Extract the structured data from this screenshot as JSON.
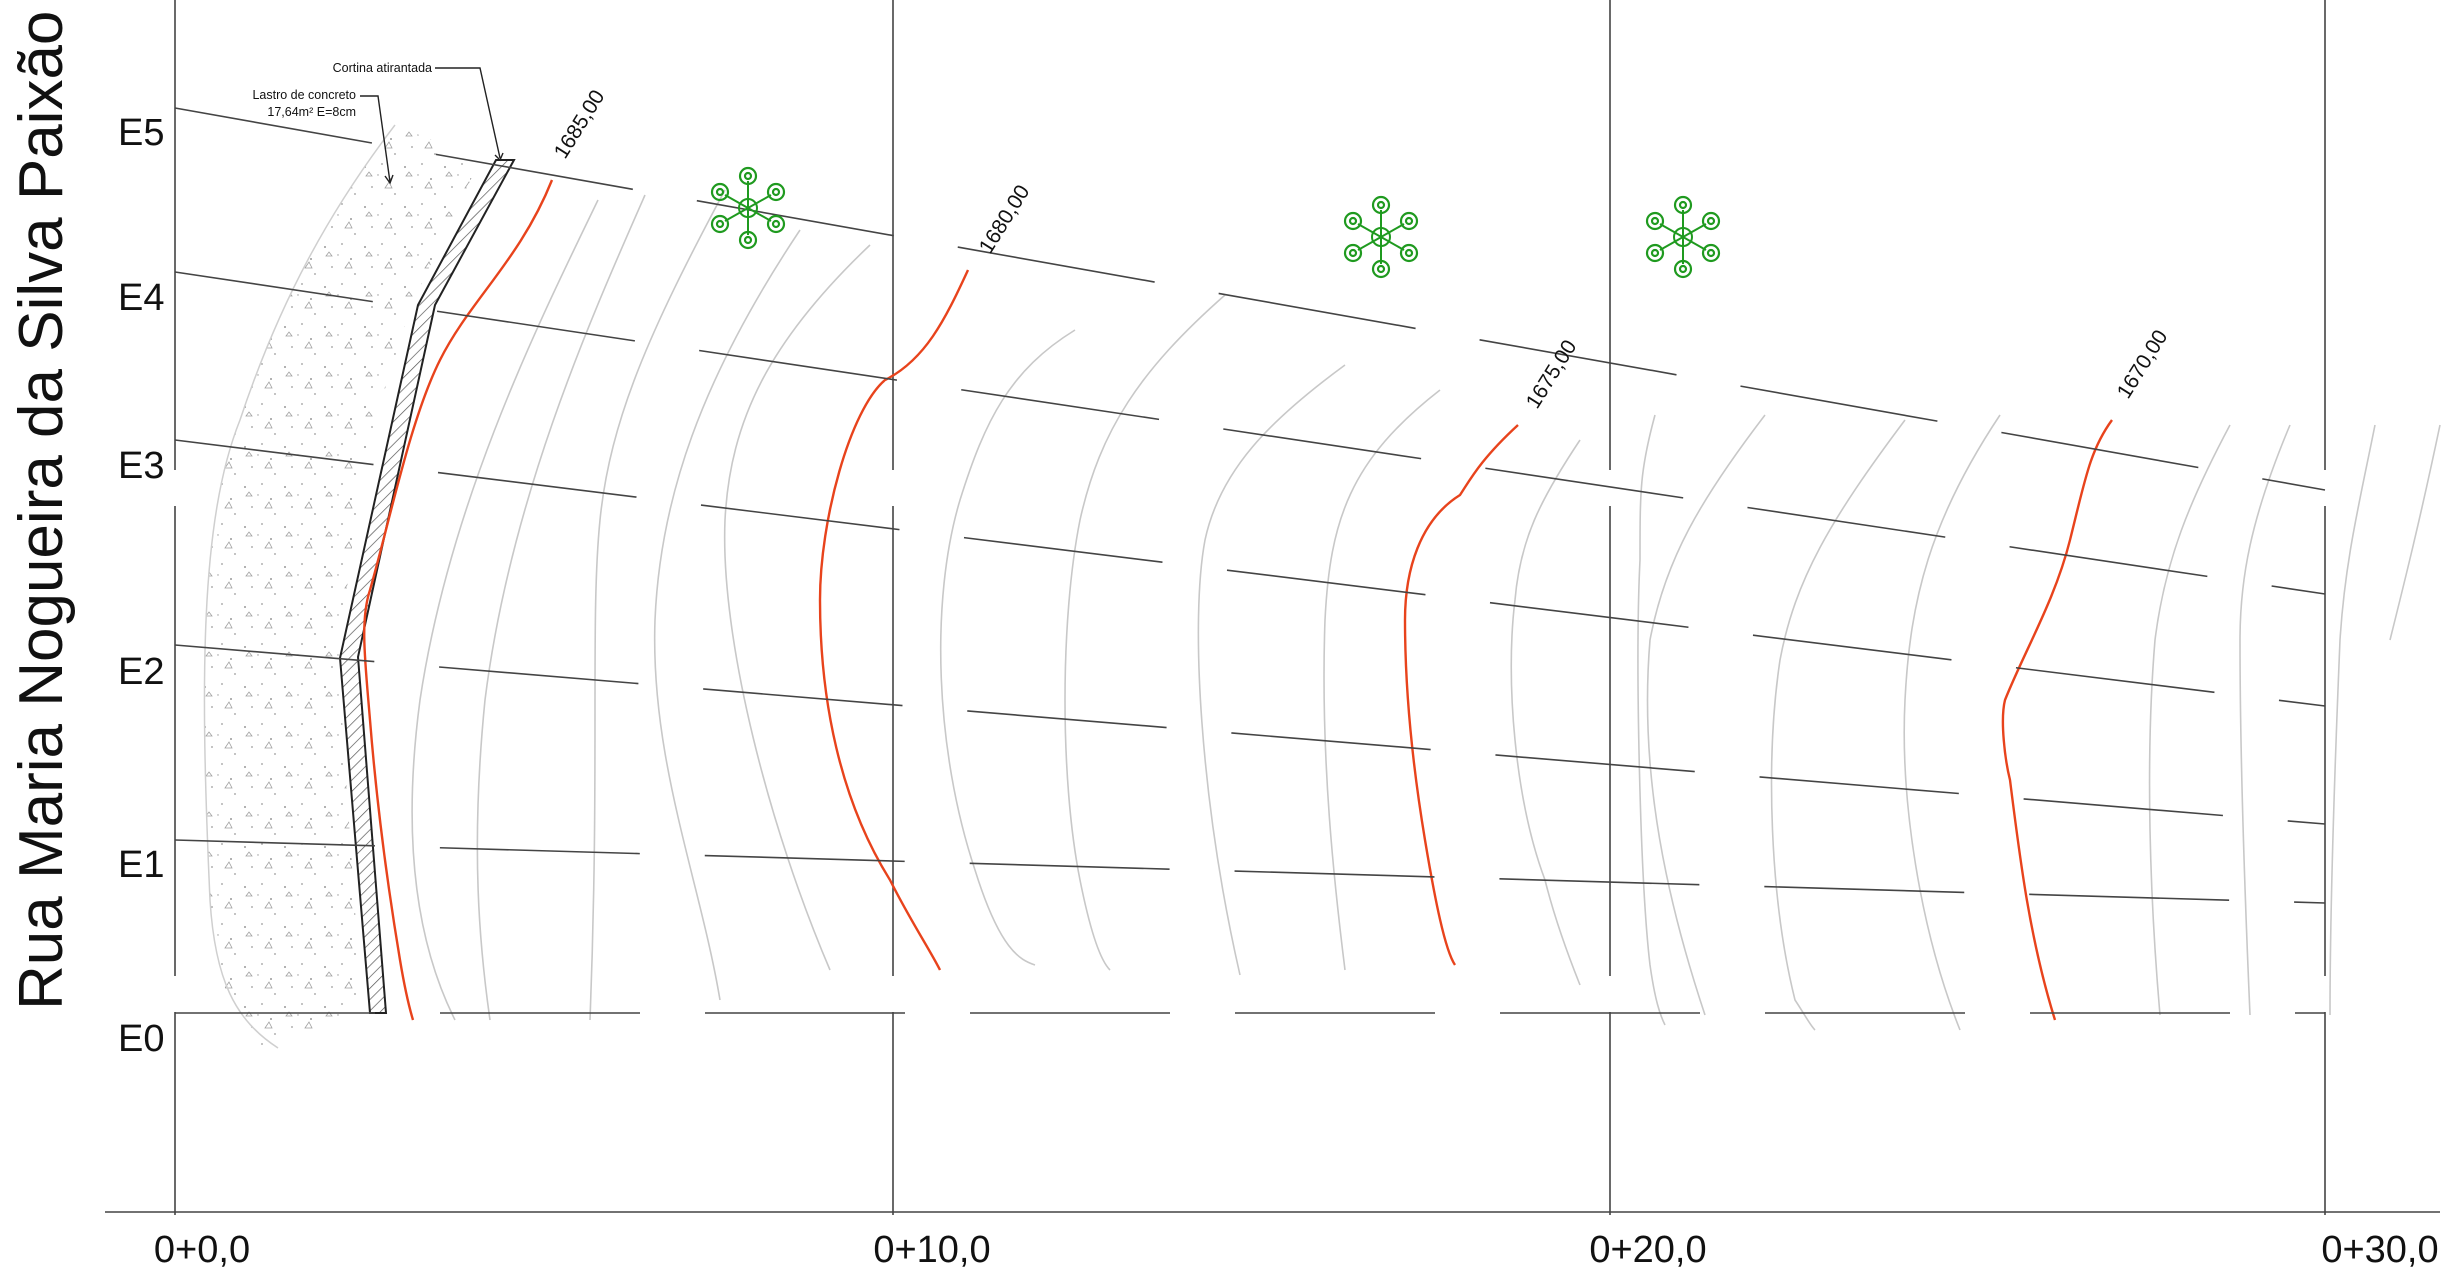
{
  "street_name": "Rua Maria Nogueira da Silva Paixão",
  "stations": [
    "0+0,0",
    "0+10,0",
    "0+20,0",
    "0+30,0"
  ],
  "sections": [
    "E5",
    "E4",
    "E3",
    "E2",
    "E1",
    "E0"
  ],
  "contour_labels": {
    "c1685": "1685,00",
    "c1680": "1680,00",
    "c1675": "1675,00",
    "c1670": "1670,00"
  },
  "annotations": {
    "cortina": "Cortina atirantada",
    "lastro_1": "Lastro de concreto",
    "lastro_2": "17,64m² E=8cm"
  },
  "colors": {
    "index_contour": "#e8431c",
    "minor_contour": "#c8c8c8",
    "section_line": "#444444",
    "tree": "#1f9a1f"
  },
  "icons": [
    "tree-symbol-icon"
  ]
}
